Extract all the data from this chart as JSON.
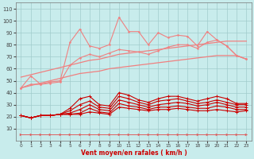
{
  "x": [
    0,
    1,
    2,
    3,
    4,
    5,
    6,
    7,
    8,
    9,
    10,
    11,
    12,
    13,
    14,
    15,
    16,
    17,
    18,
    19,
    20,
    21,
    22,
    23
  ],
  "jagged_line": [
    44,
    54,
    47,
    49,
    50,
    82,
    93,
    79,
    77,
    80,
    103,
    91,
    91,
    80,
    90,
    86,
    88,
    87,
    79,
    91,
    84,
    79,
    71,
    68
  ],
  "smooth_line": [
    44,
    47,
    47,
    48,
    49,
    63,
    69,
    72,
    70,
    73,
    76,
    75,
    74,
    72,
    75,
    78,
    80,
    80,
    77,
    82,
    84,
    79,
    71,
    68
  ],
  "linear_upper": [
    53,
    55,
    57,
    59,
    61,
    63,
    65,
    67,
    68,
    70,
    72,
    73,
    74,
    75,
    76,
    77,
    78,
    79,
    80,
    81,
    82,
    83,
    83,
    83
  ],
  "linear_lower": [
    44,
    46,
    48,
    50,
    52,
    54,
    56,
    57,
    58,
    60,
    61,
    62,
    63,
    64,
    65,
    66,
    67,
    68,
    69,
    70,
    71,
    71,
    71,
    68
  ],
  "dark1": [
    21,
    19,
    21,
    21,
    22,
    27,
    35,
    37,
    30,
    29,
    40,
    38,
    34,
    32,
    35,
    37,
    37,
    35,
    33,
    35,
    37,
    35,
    31,
    31
  ],
  "dark2": [
    21,
    19,
    21,
    21,
    22,
    25,
    30,
    33,
    28,
    27,
    37,
    35,
    32,
    30,
    33,
    34,
    35,
    33,
    31,
    32,
    34,
    32,
    30,
    30
  ],
  "dark3": [
    21,
    19,
    21,
    21,
    22,
    23,
    26,
    30,
    26,
    25,
    34,
    32,
    30,
    28,
    30,
    31,
    32,
    31,
    29,
    30,
    32,
    30,
    28,
    28
  ],
  "dark4": [
    21,
    19,
    21,
    21,
    22,
    22,
    23,
    27,
    24,
    23,
    31,
    29,
    28,
    26,
    28,
    28,
    29,
    28,
    27,
    27,
    29,
    28,
    26,
    26
  ],
  "dark5": [
    21,
    19,
    21,
    21,
    22,
    22,
    22,
    24,
    23,
    22,
    28,
    27,
    26,
    25,
    26,
    26,
    27,
    26,
    25,
    25,
    26,
    25,
    24,
    25
  ],
  "arrow_line": [
    5,
    5,
    5,
    5,
    5,
    5,
    5,
    5,
    5,
    5,
    5,
    5,
    5,
    5,
    5,
    5,
    5,
    5,
    5,
    5,
    5,
    5,
    5,
    5
  ],
  "color_light": "#F08080",
  "color_dark": "#CC0000",
  "color_arrow": "#DD6060",
  "bg_color": "#C8ECEC",
  "grid_color": "#A0CCCC",
  "xlabel": "Vent moyen/en rafales ( km/h )",
  "ylim": [
    0,
    115
  ],
  "xlim": [
    -0.5,
    23.5
  ],
  "yticks": [
    10,
    20,
    30,
    40,
    50,
    60,
    70,
    80,
    90,
    100,
    110
  ]
}
